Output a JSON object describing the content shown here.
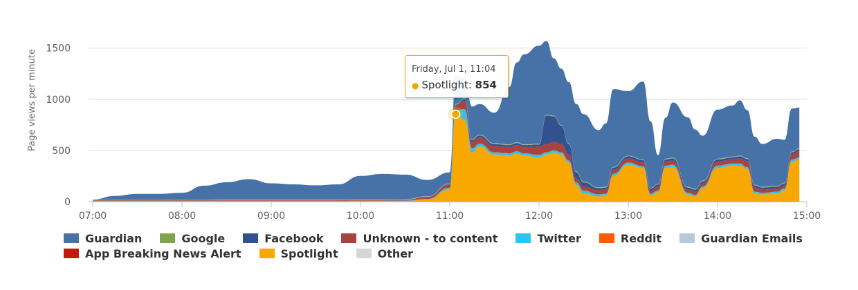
{
  "chart_data": {
    "type": "area",
    "stacked": true,
    "title": "",
    "xlabel": "",
    "ylabel": "Page views per minute",
    "ylim": [
      0,
      1700
    ],
    "yticks": [
      "0",
      "500",
      "1000",
      "1500"
    ],
    "xticks": [
      "07:00",
      "08:00",
      "09:00",
      "10:00",
      "11:00",
      "12:00",
      "13:00",
      "14:00",
      "15:00"
    ],
    "grid": true,
    "legend_position": "bottom",
    "x": [
      "07:00",
      "07:15",
      "07:30",
      "07:45",
      "08:00",
      "08:15",
      "08:30",
      "08:45",
      "09:00",
      "09:15",
      "09:30",
      "09:45",
      "10:00",
      "10:15",
      "10:30",
      "10:45",
      "11:00",
      "11:04",
      "11:10",
      "11:15",
      "11:20",
      "11:30",
      "11:40",
      "11:45",
      "11:50",
      "12:00",
      "12:05",
      "12:10",
      "12:15",
      "12:20",
      "12:25",
      "12:30",
      "12:40",
      "12:45",
      "12:50",
      "13:00",
      "13:10",
      "13:15",
      "13:20",
      "13:25",
      "13:30",
      "13:40",
      "13:45",
      "13:50",
      "14:00",
      "14:10",
      "14:15",
      "14:20",
      "14:25",
      "14:30",
      "14:40",
      "14:45",
      "14:50",
      "14:55"
    ],
    "series": [
      {
        "name": "Spotlight",
        "color": "#f9a800",
        "values": [
          2,
          2,
          2,
          2,
          2,
          2,
          3,
          3,
          3,
          3,
          3,
          3,
          4,
          4,
          5,
          20,
          120,
          854,
          800,
          480,
          540,
          460,
          450,
          470,
          450,
          430,
          460,
          480,
          460,
          380,
          160,
          80,
          50,
          60,
          250,
          360,
          330,
          60,
          90,
          330,
          340,
          70,
          50,
          130,
          330,
          350,
          350,
          320,
          80,
          70,
          80,
          110,
          390,
          410
        ]
      },
      {
        "name": "Twitter",
        "color": "#2bc4f0",
        "values": [
          4,
          4,
          4,
          4,
          4,
          4,
          4,
          4,
          4,
          4,
          4,
          4,
          4,
          4,
          4,
          5,
          15,
          40,
          100,
          40,
          25,
          20,
          20,
          20,
          20,
          25,
          20,
          20,
          20,
          20,
          25,
          25,
          20,
          15,
          20,
          20,
          15,
          15,
          15,
          20,
          20,
          15,
          15,
          15,
          20,
          20,
          20,
          15,
          15,
          15,
          15,
          15,
          20,
          20
        ]
      },
      {
        "name": "Reddit",
        "color": "#ff5a00",
        "values": [
          1,
          1,
          1,
          1,
          1,
          1,
          1,
          1,
          1,
          1,
          1,
          1,
          1,
          1,
          1,
          1,
          1,
          2,
          2,
          2,
          2,
          2,
          2,
          2,
          2,
          2,
          2,
          2,
          2,
          2,
          2,
          2,
          2,
          2,
          2,
          2,
          2,
          2,
          2,
          2,
          2,
          2,
          2,
          2,
          2,
          2,
          2,
          2,
          2,
          2,
          2,
          2,
          2,
          2
        ]
      },
      {
        "name": "Unknown - to content",
        "color": "#a84341",
        "values": [
          3,
          3,
          3,
          3,
          3,
          3,
          5,
          5,
          5,
          5,
          5,
          5,
          6,
          6,
          8,
          20,
          30,
          40,
          80,
          60,
          60,
          60,
          60,
          60,
          60,
          80,
          80,
          80,
          80,
          60,
          40,
          40,
          40,
          40,
          40,
          40,
          40,
          30,
          40,
          40,
          40,
          30,
          30,
          30,
          40,
          40,
          50,
          60,
          40,
          30,
          30,
          30,
          50,
          60
        ]
      },
      {
        "name": "Facebook",
        "color": "#33518f",
        "values": [
          1,
          1,
          1,
          1,
          1,
          1,
          1,
          1,
          1,
          1,
          1,
          1,
          1,
          1,
          1,
          1,
          5,
          10,
          20,
          20,
          20,
          20,
          20,
          20,
          20,
          20,
          280,
          250,
          180,
          100,
          60,
          40,
          20,
          20,
          20,
          20,
          20,
          20,
          20,
          20,
          20,
          20,
          20,
          20,
          20,
          20,
          20,
          20,
          20,
          20,
          20,
          20,
          20,
          20
        ]
      },
      {
        "name": "Google",
        "color": "#7ea34b",
        "values": [
          3,
          3,
          3,
          3,
          3,
          3,
          3,
          3,
          3,
          3,
          3,
          3,
          3,
          3,
          3,
          3,
          3,
          5,
          5,
          5,
          5,
          5,
          5,
          5,
          5,
          5,
          5,
          5,
          5,
          5,
          5,
          5,
          5,
          5,
          5,
          5,
          5,
          5,
          5,
          5,
          5,
          5,
          5,
          5,
          5,
          5,
          5,
          5,
          5,
          5,
          5,
          5,
          5,
          5
        ]
      },
      {
        "name": "Guardian Emails",
        "color": "#b6c8dc",
        "values": [
          1,
          1,
          1,
          1,
          1,
          1,
          1,
          1,
          1,
          1,
          1,
          1,
          1,
          1,
          1,
          1,
          1,
          1,
          1,
          1,
          1,
          1,
          1,
          1,
          1,
          1,
          1,
          1,
          1,
          1,
          1,
          1,
          1,
          1,
          1,
          1,
          1,
          1,
          1,
          1,
          1,
          1,
          1,
          1,
          1,
          1,
          1,
          1,
          1,
          1,
          1,
          1,
          1,
          1
        ]
      },
      {
        "name": "App Breaking News Alert",
        "color": "#c01a0a",
        "values": [
          0,
          0,
          0,
          0,
          0,
          0,
          0,
          0,
          0,
          0,
          0,
          0,
          0,
          0,
          0,
          0,
          0,
          0,
          0,
          0,
          0,
          0,
          0,
          0,
          0,
          0,
          0,
          0,
          0,
          0,
          0,
          0,
          0,
          0,
          0,
          0,
          0,
          0,
          0,
          0,
          0,
          0,
          0,
          0,
          0,
          0,
          0,
          0,
          0,
          0,
          0,
          0,
          0,
          0
        ]
      },
      {
        "name": "Other",
        "color": "#d6d6d6",
        "values": [
          1,
          1,
          1,
          1,
          1,
          1,
          1,
          1,
          1,
          1,
          1,
          1,
          1,
          1,
          1,
          1,
          1,
          1,
          1,
          1,
          1,
          1,
          1,
          1,
          1,
          1,
          1,
          1,
          1,
          1,
          1,
          1,
          1,
          1,
          1,
          1,
          1,
          1,
          1,
          1,
          1,
          1,
          1,
          1,
          1,
          1,
          1,
          1,
          1,
          1,
          1,
          1,
          1,
          1
        ]
      },
      {
        "name": "Guardian",
        "color": "#4672a8",
        "values": [
          5,
          40,
          60,
          60,
          70,
          140,
          170,
          200,
          160,
          150,
          140,
          150,
          230,
          250,
          240,
          160,
          110,
          280,
          200,
          320,
          300,
          300,
          560,
          780,
          880,
          960,
          720,
          560,
          550,
          600,
          660,
          660,
          560,
          620,
          760,
          630,
          760,
          650,
          280,
          400,
          540,
          680,
          580,
          440,
          480,
          500,
          540,
          470,
          470,
          420,
          460,
          420,
          420,
          400
        ]
      }
    ],
    "legend": [
      "Guardian",
      "Google",
      "Facebook",
      "Unknown - to content",
      "Twitter",
      "Reddit",
      "Guardian Emails",
      "App Breaking News Alert",
      "Spotlight",
      "Other"
    ]
  },
  "tooltip": {
    "date": "Friday, Jul 1, 11:04",
    "series": "Spotlight:",
    "value": "854",
    "x": "11:04",
    "color": "#f0a800"
  }
}
